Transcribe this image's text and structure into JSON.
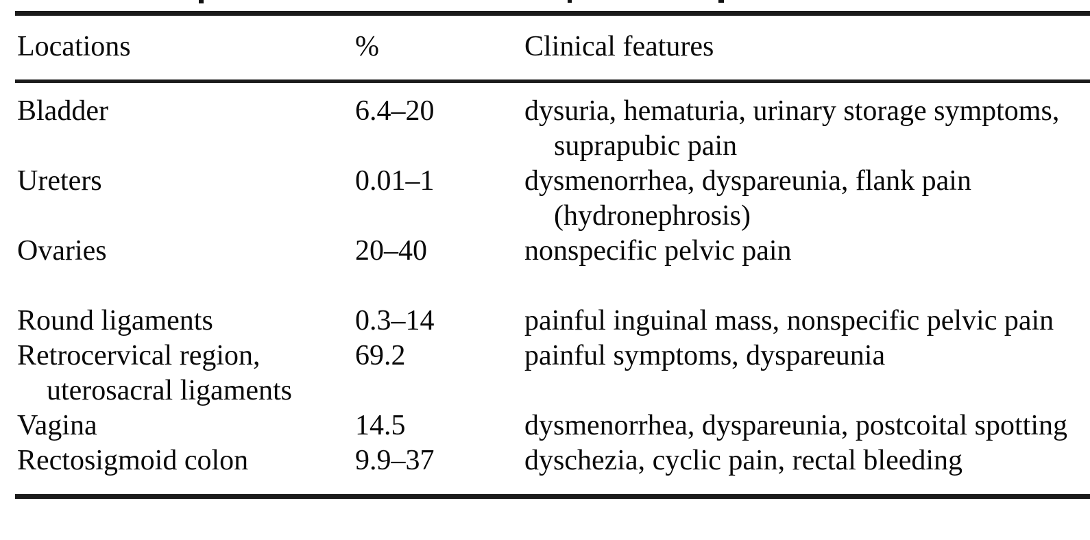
{
  "page": {
    "background": "#ffffff",
    "text_color": "#0a0a0a",
    "rule_color": "#1b1b1b"
  },
  "table": {
    "header": {
      "locations": "Locations",
      "percent": "%",
      "clinical_features": "Clinical features"
    },
    "rows": [
      {
        "location_lines": [
          "Bladder"
        ],
        "percent": "6.4–20",
        "feature_lines": [
          "dysuria, hematuria, urinary storage symptoms,",
          "suprapubic pain"
        ]
      },
      {
        "location_lines": [
          "Ureters"
        ],
        "percent": "0.01–1",
        "feature_lines": [
          "dysmenorrhea, dyspareunia, flank pain",
          "(hydronephrosis)"
        ]
      },
      {
        "location_lines": [
          "Ovaries"
        ],
        "percent": "20–40",
        "feature_lines": [
          "nonspecific pelvic pain"
        ]
      },
      {
        "location_lines": [
          "Round ligaments"
        ],
        "percent": "0.3–14",
        "feature_lines": [
          "painful inguinal mass, nonspecific pelvic pain"
        ]
      },
      {
        "location_lines": [
          "Retrocervical region,",
          "uterosacral ligaments"
        ],
        "percent": "69.2",
        "feature_lines": [
          "painful symptoms, dyspareunia"
        ]
      },
      {
        "location_lines": [
          "Vagina"
        ],
        "percent": "14.5",
        "feature_lines": [
          "dysmenorrhea, dyspareunia, postcoital spotting"
        ]
      },
      {
        "location_lines": [
          "Rectosigmoid colon"
        ],
        "percent": "9.9–37",
        "feature_lines": [
          "dyschezia, cyclic pain, rectal bleeding"
        ]
      }
    ]
  }
}
